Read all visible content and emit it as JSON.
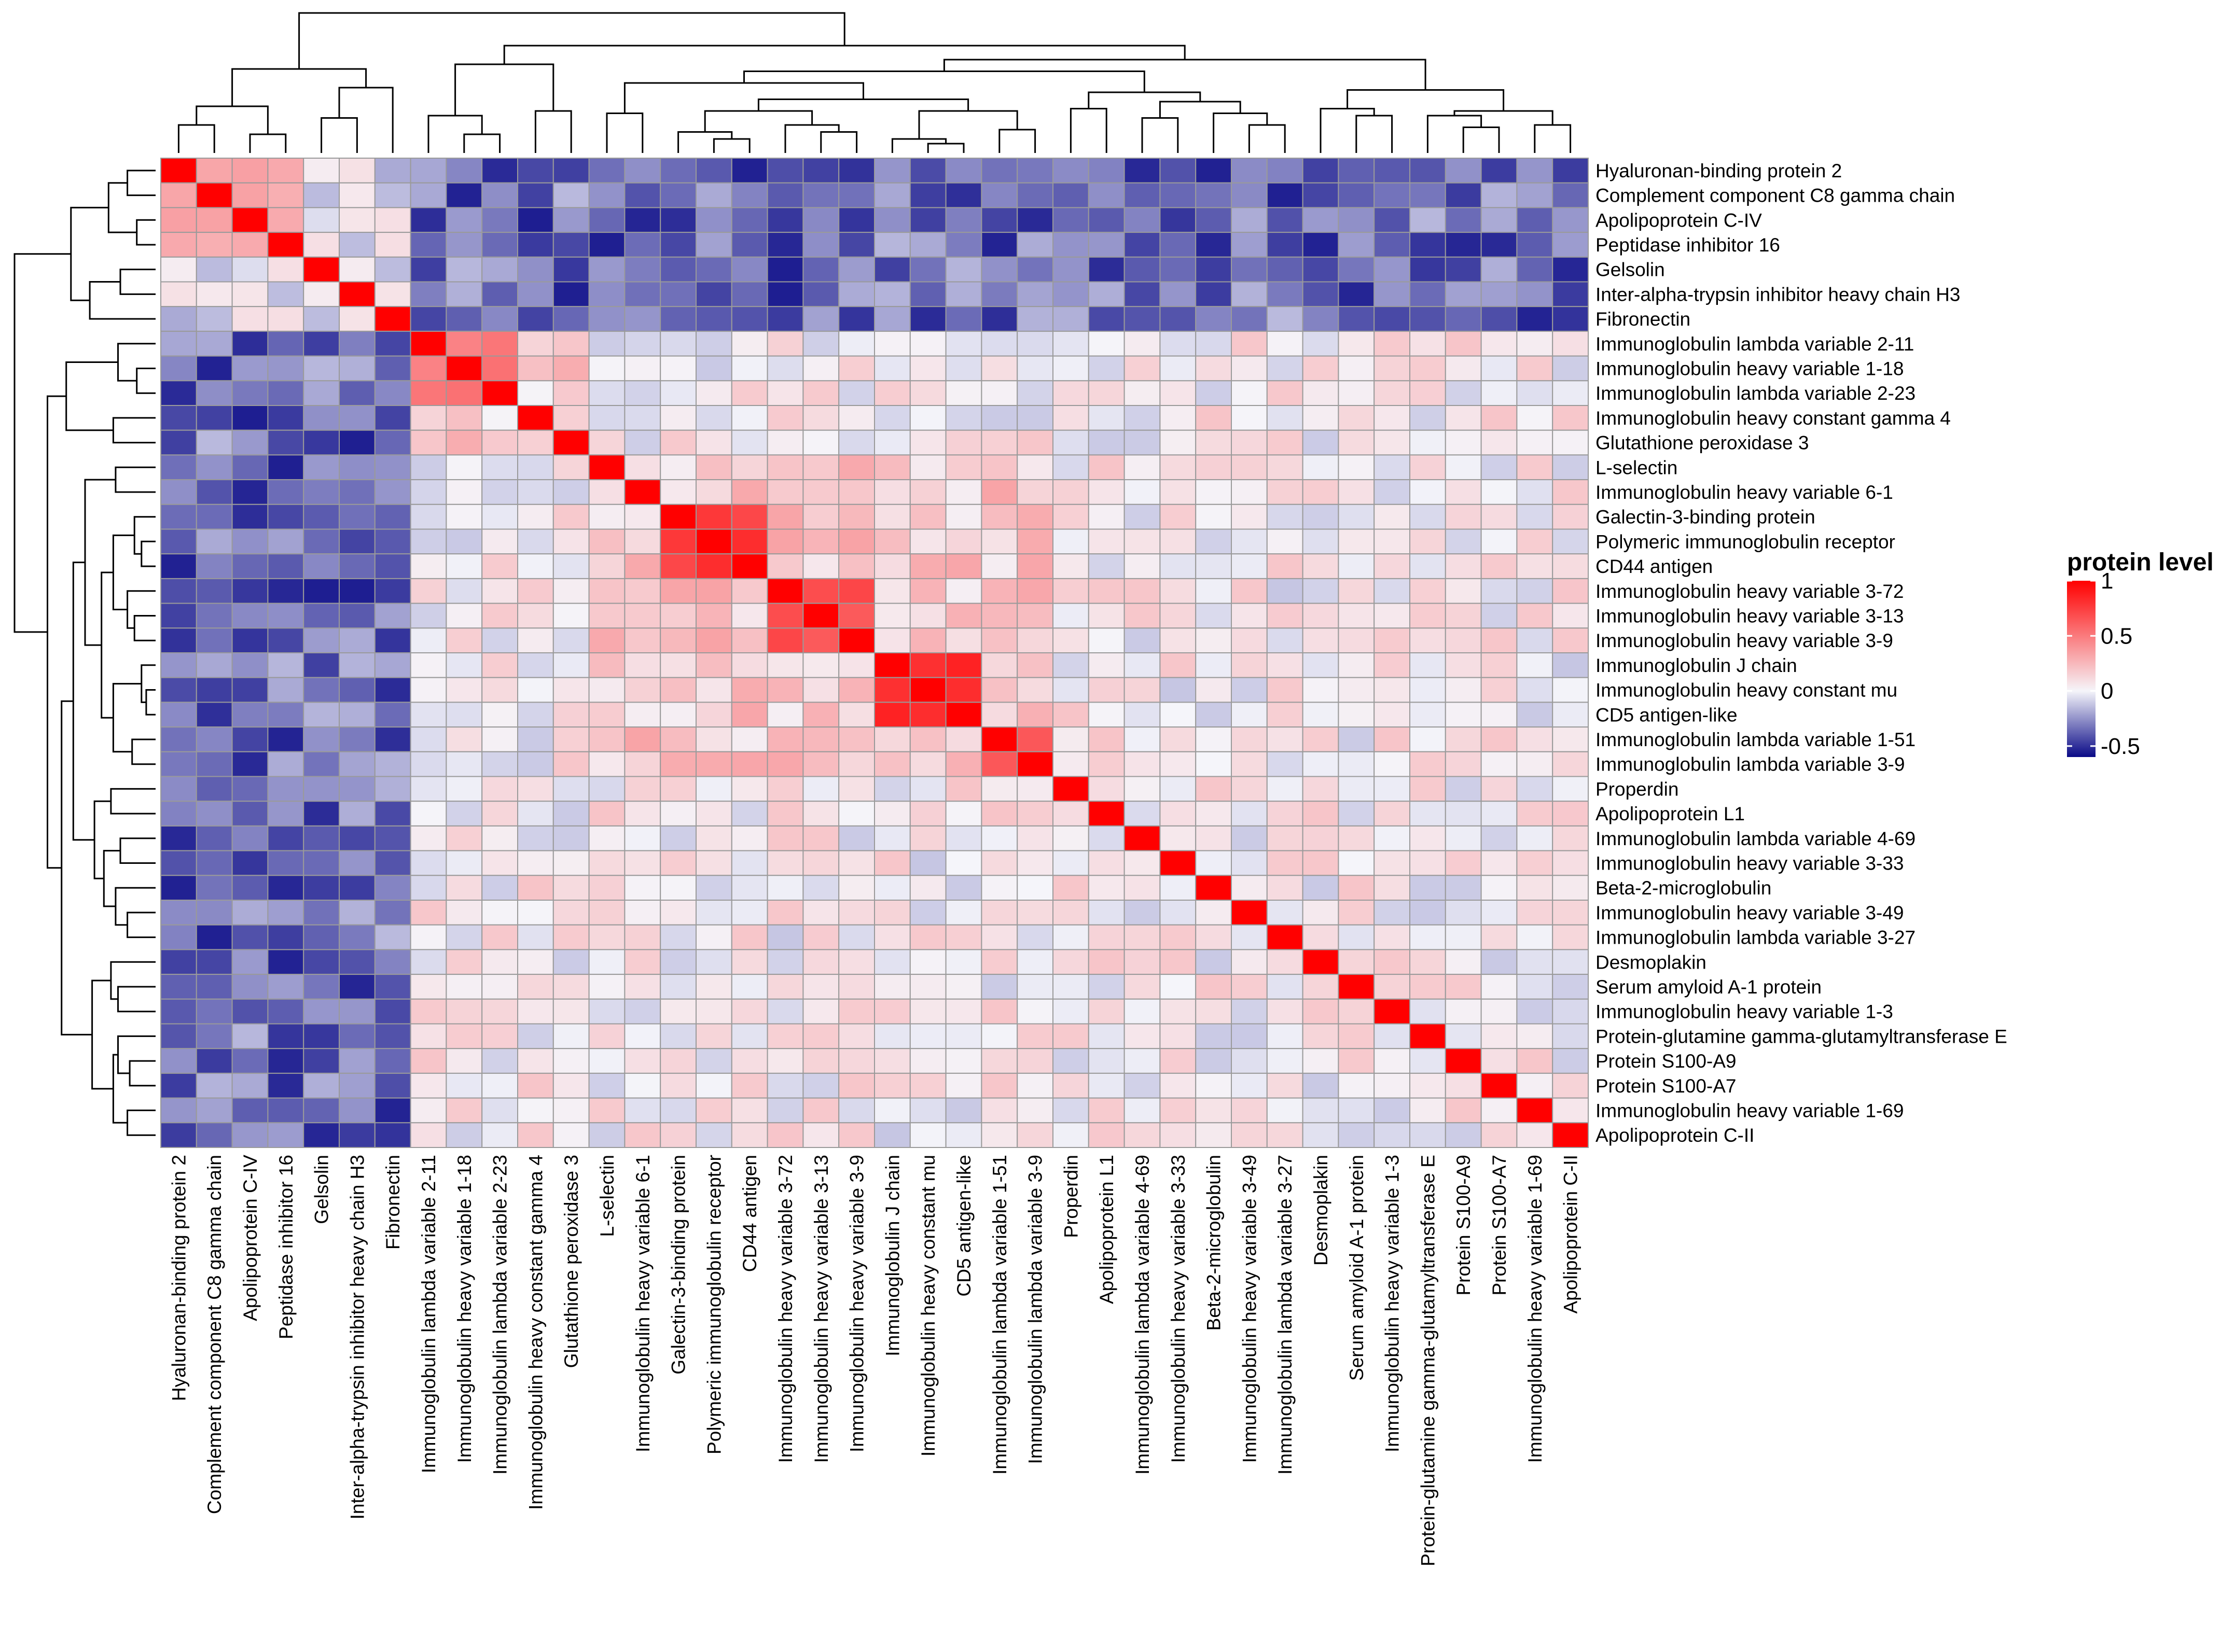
{
  "chart_data": {
    "type": "heatmap",
    "title": "",
    "legend": {
      "title": "protein level",
      "ticks": [
        1,
        0.5,
        0,
        -0.5
      ],
      "tick_labels": [
        "1",
        "0.5",
        "0",
        "-0.5"
      ],
      "range": [
        -0.6,
        1.0
      ],
      "colors": {
        "low": "#0a0a87",
        "mid": "#f5f5fa",
        "high": "#ff0000"
      },
      "placement": "right"
    },
    "labels": [
      "Hyaluronan-binding protein 2",
      "Complement component C8 gamma chain",
      "Apolipoprotein C-IV",
      "Peptidase inhibitor 16",
      "Gelsolin",
      "Inter-alpha-trypsin inhibitor heavy chain H3",
      "Fibronectin",
      "Immunoglobulin lambda variable 2-11",
      "Immunoglobulin heavy variable 1-18",
      "Immunoglobulin lambda variable 2-23",
      "Immunoglobulin heavy constant gamma 4",
      "Glutathione peroxidase 3",
      "L-selectin",
      "Immunoglobulin heavy variable 6-1",
      "Galectin-3-binding protein",
      "Polymeric immunoglobulin receptor",
      "CD44 antigen",
      "Immunoglobulin heavy variable 3-72",
      "Immunoglobulin heavy variable 3-13",
      "Immunoglobulin heavy variable 3-9",
      "Immunoglobulin J chain",
      "Immunoglobulin heavy constant mu",
      "CD5 antigen-like",
      "Immunoglobulin lambda variable 1-51",
      "Immunoglobulin lambda variable 3-9",
      "Properdin",
      "Apolipoprotein L1",
      "Immunoglobulin lambda variable 4-69",
      "Immunoglobulin heavy variable 3-33",
      "Beta-2-microglobulin",
      "Immunoglobulin heavy variable 3-49",
      "Immunoglobulin lambda variable 3-27",
      "Desmoplakin",
      "Serum amyloid A-1 protein",
      "Immunoglobulin heavy variable 1-3",
      "Protein-glutamine gamma-glutamyltransferase E",
      "Protein S100-A9",
      "Protein S100-A7",
      "Immunoglobulin heavy variable 1-69",
      "Apolipoprotein C-II"
    ],
    "blocks": [
      {
        "start": 0,
        "end": 3,
        "within": 0.35,
        "outside_ig": -0.35
      },
      {
        "start": 7,
        "end": 9,
        "within": 0.6
      },
      {
        "start": 14,
        "end": 16,
        "within": 0.85
      },
      {
        "start": 17,
        "end": 19,
        "within": 0.75
      },
      {
        "start": 20,
        "end": 22,
        "within": 0.9
      },
      {
        "start": 23,
        "end": 24,
        "within": 0.75
      }
    ],
    "notes": "Symmetric correlation matrix of 40 proteins, diagonal = 1; values estimated from the colour scale.",
    "diagonal": 1,
    "dendrogram": "hierarchical clustering shown on top and left"
  }
}
